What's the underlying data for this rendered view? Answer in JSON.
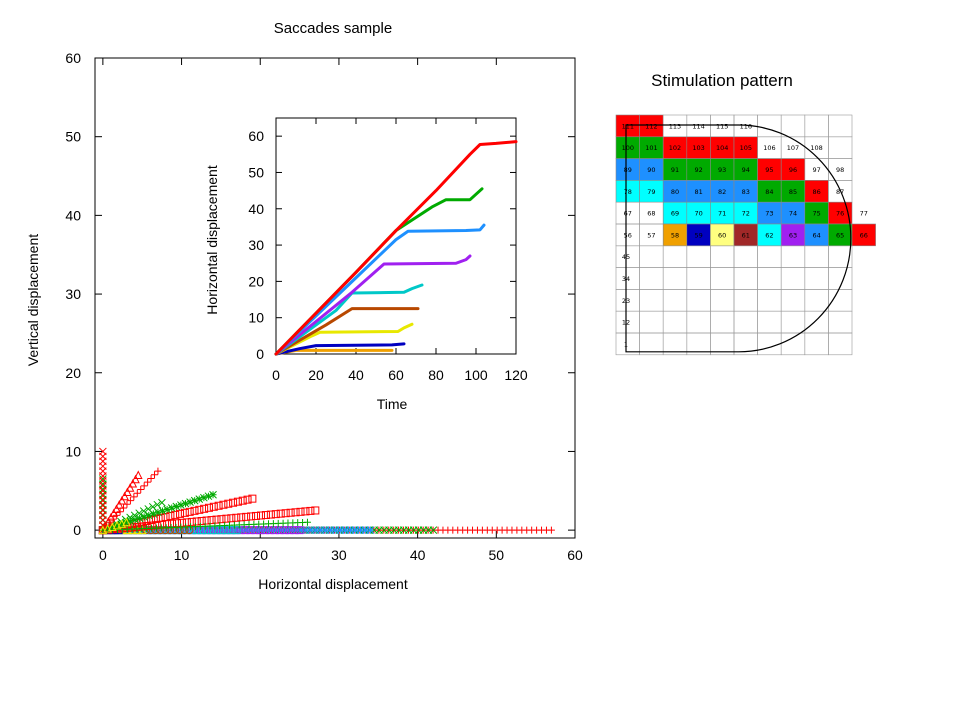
{
  "chart_data": [
    {
      "type": "scatter",
      "title": "Saccades sample",
      "xlabel": "Horizontal displacement",
      "ylabel": "Vertical displacement",
      "xlim": [
        -1,
        60
      ],
      "ylim": [
        -1,
        60
      ],
      "xticks": [
        0,
        10,
        20,
        30,
        40,
        50,
        60
      ],
      "yticks": [
        0,
        10,
        20,
        30,
        40,
        50,
        60
      ],
      "grid": false,
      "series": [
        {
          "color": "#ff0000",
          "marker": "+",
          "end": [
            57,
            0
          ]
        },
        {
          "color": "#00aa00",
          "marker": "x",
          "end": [
            42,
            0
          ]
        },
        {
          "color": "#1e90ff",
          "marker": "*",
          "end": [
            34,
            0
          ]
        },
        {
          "color": "#a020f0",
          "marker": "square",
          "end": [
            25,
            0
          ]
        },
        {
          "color": "#00c8c8",
          "marker": "square",
          "end": [
            17,
            0
          ]
        },
        {
          "color": "#b84800",
          "marker": "circle",
          "end": [
            11,
            0
          ]
        },
        {
          "color": "#e8e800",
          "marker": "triangle",
          "end": [
            5,
            0
          ]
        },
        {
          "color": "#0000c0",
          "marker": "triangle",
          "end": [
            2,
            0
          ]
        },
        {
          "color": "#ff0000",
          "marker": "square",
          "end": [
            27,
            2.5
          ]
        },
        {
          "color": "#ff0000",
          "marker": "square",
          "end": [
            19,
            4
          ]
        },
        {
          "color": "#00aa00",
          "marker": "*",
          "end": [
            14,
            4.5
          ]
        },
        {
          "color": "#00aa00",
          "marker": "x",
          "end": [
            7.5,
            3.5
          ]
        },
        {
          "color": "#ff0000",
          "marker": "+",
          "end": [
            7,
            7.5
          ]
        },
        {
          "color": "#ff0000",
          "marker": "triangle",
          "end": [
            4.5,
            7
          ]
        },
        {
          "color": "#00aa00",
          "marker": "x",
          "end": [
            0,
            6.5
          ]
        },
        {
          "color": "#ff0000",
          "marker": "x",
          "end": [
            0,
            10
          ]
        },
        {
          "color": "#00aa00",
          "marker": "+",
          "end": [
            26,
            1
          ]
        },
        {
          "color": "#e8e800",
          "marker": "triangle",
          "end": [
            3,
            1
          ]
        }
      ]
    },
    {
      "type": "line",
      "xlabel": "Time",
      "ylabel": "Horizontal displacement",
      "xlim": [
        0,
        120
      ],
      "ylim": [
        0,
        65
      ],
      "xticks": [
        0,
        20,
        40,
        60,
        80,
        100,
        120
      ],
      "yticks": [
        0,
        10,
        20,
        30,
        40,
        50,
        60
      ],
      "series": [
        {
          "color": "#ff0000",
          "x": [
            0,
            40,
            60,
            80,
            97,
            102,
            110,
            120
          ],
          "y": [
            0,
            22.5,
            34,
            45,
            55,
            57.7,
            58,
            58.5
          ]
        },
        {
          "color": "#00aa00",
          "x": [
            0,
            40,
            60,
            78,
            85,
            97,
            103
          ],
          "y": [
            0,
            22.5,
            34,
            40.5,
            42.5,
            42.5,
            45.5
          ]
        },
        {
          "color": "#1e90ff",
          "x": [
            0,
            40,
            60,
            66,
            95,
            102,
            104
          ],
          "y": [
            0,
            21,
            31.5,
            33.8,
            34,
            34.2,
            35.5
          ]
        },
        {
          "color": "#a020f0",
          "x": [
            0,
            38,
            54,
            90,
            95,
            97
          ],
          "y": [
            0,
            17,
            24.8,
            25,
            26,
            27
          ]
        },
        {
          "color": "#00c8c8",
          "x": [
            0,
            30,
            38,
            64,
            68,
            73
          ],
          "y": [
            0,
            12,
            16.8,
            17,
            18,
            19
          ]
        },
        {
          "color": "#b84800",
          "x": [
            0,
            25,
            38,
            65,
            71
          ],
          "y": [
            0,
            8,
            12.5,
            12.5,
            12.5
          ]
        },
        {
          "color": "#e8e800",
          "x": [
            0,
            18,
            22,
            61,
            64,
            68
          ],
          "y": [
            0,
            5,
            6,
            6.2,
            7.2,
            8.2
          ]
        },
        {
          "color": "#0000c0",
          "x": [
            0,
            12,
            20,
            58,
            64
          ],
          "y": [
            0,
            1.5,
            2.3,
            2.5,
            2.8
          ]
        },
        {
          "color": "#f0a000",
          "x": [
            0,
            5,
            10,
            56,
            58
          ],
          "y": [
            0,
            0.5,
            1,
            1,
            1
          ]
        }
      ]
    },
    {
      "type": "heatmap",
      "title": "Stimulation pattern",
      "rows": [
        {
          "labels": [
            "111",
            "112",
            "113",
            "114",
            "115",
            "116",
            "",
            "",
            "",
            ""
          ],
          "colors": [
            "#ff0000",
            "#ff0000",
            "",
            "",
            "",
            "",
            "",
            "",
            "",
            ""
          ]
        },
        {
          "labels": [
            "100",
            "101",
            "102",
            "103",
            "104",
            "105",
            "106",
            "107",
            "108",
            ""
          ],
          "colors": [
            "#00aa00",
            "#00aa00",
            "#ff0000",
            "#ff0000",
            "#ff0000",
            "#ff0000",
            "",
            "",
            "",
            ""
          ]
        },
        {
          "labels": [
            "89",
            "90",
            "91",
            "92",
            "93",
            "94",
            "95",
            "96",
            "97",
            "98"
          ],
          "colors": [
            "#1e90ff",
            "#1e90ff",
            "#00aa00",
            "#00aa00",
            "#00aa00",
            "#00aa00",
            "#ff0000",
            "#ff0000",
            "",
            ""
          ]
        },
        {
          "labels": [
            "78",
            "79",
            "80",
            "81",
            "82",
            "83",
            "84",
            "85",
            "86",
            "87"
          ],
          "colors": [
            "#00ffff",
            "#00ffff",
            "#1e90ff",
            "#1e90ff",
            "#1e90ff",
            "#1e90ff",
            "#00aa00",
            "#00aa00",
            "#ff0000",
            ""
          ]
        },
        {
          "labels": [
            "67",
            "68",
            "69",
            "70",
            "71",
            "72",
            "73",
            "74",
            "75",
            "76",
            "77"
          ],
          "colors": [
            "",
            "",
            "#00ffff",
            "#00ffff",
            "#00ffff",
            "#00ffff",
            "#1e90ff",
            "#1e90ff",
            "#00aa00",
            "#ff0000",
            ""
          ]
        },
        {
          "labels": [
            "56",
            "57",
            "58",
            "59",
            "60",
            "61",
            "62",
            "63",
            "64",
            "65",
            "66"
          ],
          "colors": [
            "",
            "",
            "#f0a000",
            "#0000c0",
            "#ffff80",
            "#a02828",
            "#00ffff",
            "#a020f0",
            "#1e90ff",
            "#00aa00",
            "#ff0000"
          ]
        },
        {
          "labels": [
            "45",
            "",
            "",
            "",
            "",
            "",
            "",
            "",
            "",
            ""
          ],
          "colors": [
            "",
            "",
            "",
            "",
            "",
            "",
            "",
            "",
            "",
            ""
          ]
        },
        {
          "labels": [
            "34",
            "",
            "",
            "",
            "",
            "",
            "",
            "",
            "",
            ""
          ],
          "colors": [
            "",
            "",
            "",
            "",
            "",
            "",
            "",
            "",
            "",
            ""
          ]
        },
        {
          "labels": [
            "23",
            "",
            "",
            "",
            "",
            "",
            "",
            "",
            "",
            ""
          ],
          "colors": [
            "",
            "",
            "",
            "",
            "",
            "",
            "",
            "",
            "",
            ""
          ]
        },
        {
          "labels": [
            "12",
            "",
            "",
            "",
            "",
            "",
            "",
            "",
            "",
            ""
          ],
          "colors": [
            "",
            "",
            "",
            "",
            "",
            "",
            "",
            "",
            "",
            ""
          ]
        },
        {
          "labels": [
            "1",
            "",
            "",
            "",
            "",
            "",
            "",
            "",
            "",
            ""
          ],
          "colors": [
            "",
            "",
            "",
            "",
            "",
            "",
            "",
            "",
            "",
            ""
          ]
        }
      ]
    }
  ]
}
